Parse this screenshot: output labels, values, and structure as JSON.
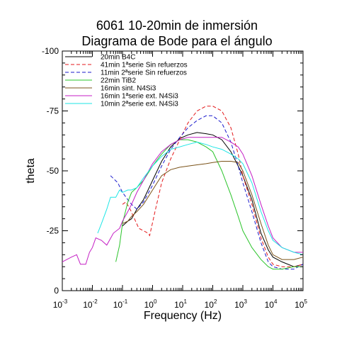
{
  "chart_data": {
    "type": "line",
    "title": [
      "6061 10-20min de inmersión",
      "Diagrama de Bode para el ángulo"
    ],
    "xlabel": "Frequency (Hz)",
    "ylabel": "theta",
    "x_scale": "log",
    "xlim": [
      0.001,
      100000
    ],
    "ylim": [
      0,
      -100
    ],
    "y_inverted": true,
    "yticks": [
      "0",
      "-25",
      "-50",
      "-75",
      "-100"
    ],
    "xticks": [
      {
        "base": "10",
        "exp": "-3"
      },
      {
        "base": "10",
        "exp": "-2"
      },
      {
        "base": "10",
        "exp": "-1"
      },
      {
        "base": "10",
        "exp": "0"
      },
      {
        "base": "10",
        "exp": "1"
      },
      {
        "base": "10",
        "exp": "2"
      },
      {
        "base": "10",
        "exp": "3"
      },
      {
        "base": "10",
        "exp": "4"
      },
      {
        "base": "10",
        "exp": "5"
      }
    ],
    "grid": false,
    "legend_position": "top-left",
    "series": [
      {
        "name": "20min B4C",
        "color": "#000000",
        "dash": "solid",
        "points": [
          [
            0.1,
            -27
          ],
          [
            0.15,
            -29
          ],
          [
            0.2,
            -30
          ],
          [
            0.3,
            -34
          ],
          [
            0.5,
            -38
          ],
          [
            1,
            -46
          ],
          [
            2,
            -54
          ],
          [
            4,
            -60
          ],
          [
            8,
            -63.5
          ],
          [
            15,
            -65
          ],
          [
            30,
            -66
          ],
          [
            60,
            -65.5
          ],
          [
            100,
            -65
          ],
          [
            200,
            -63
          ],
          [
            400,
            -58
          ],
          [
            700,
            -52
          ],
          [
            1000,
            -48
          ],
          [
            2000,
            -38
          ],
          [
            4000,
            -24
          ],
          [
            7000,
            -17
          ],
          [
            10000,
            -14
          ],
          [
            20000,
            -12
          ],
          [
            50000,
            -10
          ],
          [
            100000,
            -11
          ]
        ]
      },
      {
        "name": "41min 1ªserie Sin refuerzos",
        "color": "#e41a1c",
        "dash": "dashed",
        "points": [
          [
            0.1,
            -36
          ],
          [
            0.13,
            -37
          ],
          [
            0.18,
            -34
          ],
          [
            0.25,
            -30
          ],
          [
            0.35,
            -26
          ],
          [
            0.5,
            -25
          ],
          [
            0.7,
            -24
          ],
          [
            0.8,
            -23
          ],
          [
            1.2,
            -33
          ],
          [
            2,
            -45
          ],
          [
            4,
            -55
          ],
          [
            8,
            -63
          ],
          [
            15,
            -70
          ],
          [
            30,
            -75
          ],
          [
            60,
            -77
          ],
          [
            100,
            -77
          ],
          [
            200,
            -75
          ],
          [
            400,
            -68
          ],
          [
            700,
            -57
          ],
          [
            1000,
            -48
          ],
          [
            2000,
            -36
          ],
          [
            4000,
            -22
          ],
          [
            7000,
            -14
          ],
          [
            10000,
            -11
          ],
          [
            20000,
            -10
          ],
          [
            50000,
            -10
          ],
          [
            100000,
            -11
          ]
        ]
      },
      {
        "name": "11min 2ªserie Sin refuerzos",
        "color": "#1a1acd",
        "dash": "dashed",
        "points": [
          [
            0.04,
            -48
          ],
          [
            0.07,
            -45
          ],
          [
            0.1,
            -41
          ],
          [
            0.15,
            -38
          ],
          [
            0.2,
            -36
          ],
          [
            0.3,
            -34
          ],
          [
            0.5,
            -37
          ],
          [
            1,
            -44
          ],
          [
            2,
            -52
          ],
          [
            4,
            -59
          ],
          [
            8,
            -64
          ],
          [
            15,
            -68
          ],
          [
            30,
            -71
          ],
          [
            60,
            -73
          ],
          [
            100,
            -73
          ],
          [
            200,
            -70
          ],
          [
            400,
            -62
          ],
          [
            700,
            -52
          ],
          [
            1000,
            -45
          ],
          [
            2000,
            -33
          ],
          [
            4000,
            -20
          ],
          [
            7000,
            -12
          ],
          [
            10000,
            -10
          ],
          [
            20000,
            -9
          ],
          [
            50000,
            -9
          ],
          [
            100000,
            -11
          ]
        ]
      },
      {
        "name": "22min TiB2",
        "color": "#2bc42b",
        "dash": "solid",
        "points": [
          [
            0.06,
            -12
          ],
          [
            0.08,
            -19
          ],
          [
            0.1,
            -28
          ],
          [
            0.15,
            -37
          ],
          [
            0.2,
            -41
          ],
          [
            0.3,
            -43
          ],
          [
            0.5,
            -46
          ],
          [
            1,
            -52
          ],
          [
            2,
            -57
          ],
          [
            4,
            -61
          ],
          [
            8,
            -63
          ],
          [
            15,
            -63
          ],
          [
            30,
            -62
          ],
          [
            60,
            -60
          ],
          [
            100,
            -58
          ],
          [
            200,
            -50
          ],
          [
            400,
            -40
          ],
          [
            700,
            -31
          ],
          [
            1000,
            -25
          ],
          [
            2000,
            -18
          ],
          [
            4000,
            -13
          ],
          [
            7000,
            -10
          ],
          [
            10000,
            -9
          ],
          [
            20000,
            -9
          ],
          [
            50000,
            -10
          ],
          [
            100000,
            -10
          ]
        ]
      },
      {
        "name": "16min sint. N4Si3",
        "color": "#7a5218",
        "dash": "solid",
        "points": [
          [
            0.1,
            -28
          ],
          [
            0.15,
            -29
          ],
          [
            0.2,
            -31
          ],
          [
            0.3,
            -33
          ],
          [
            0.5,
            -36
          ],
          [
            1,
            -42
          ],
          [
            2,
            -48
          ],
          [
            4,
            -50.5
          ],
          [
            8,
            -51.5
          ],
          [
            15,
            -52
          ],
          [
            30,
            -52.5
          ],
          [
            60,
            -53
          ],
          [
            100,
            -53.5
          ],
          [
            200,
            -54
          ],
          [
            400,
            -54
          ],
          [
            700,
            -53.5
          ],
          [
            1000,
            -50
          ],
          [
            2000,
            -40
          ],
          [
            4000,
            -28
          ],
          [
            7000,
            -19
          ],
          [
            10000,
            -15
          ],
          [
            20000,
            -13
          ],
          [
            50000,
            -13
          ],
          [
            100000,
            -14
          ]
        ]
      },
      {
        "name": "16min 1ªserie ext. N4Si3",
        "color": "#c41ec4",
        "dash": "solid",
        "points": [
          [
            0.001,
            -12
          ],
          [
            0.002,
            -14
          ],
          [
            0.003,
            -15
          ],
          [
            0.004,
            -11
          ],
          [
            0.006,
            -11
          ],
          [
            0.008,
            -16
          ],
          [
            0.01,
            -18
          ],
          [
            0.013,
            -22
          ],
          [
            0.02,
            -21
          ],
          [
            0.03,
            -19
          ],
          [
            0.05,
            -24
          ],
          [
            0.08,
            -26
          ],
          [
            0.1,
            -29
          ],
          [
            0.15,
            -33
          ],
          [
            0.2,
            -36
          ],
          [
            0.3,
            -41
          ],
          [
            0.5,
            -46
          ],
          [
            1,
            -53
          ],
          [
            2,
            -58
          ],
          [
            4,
            -61
          ],
          [
            8,
            -63
          ],
          [
            15,
            -64
          ],
          [
            30,
            -64
          ],
          [
            60,
            -64
          ],
          [
            100,
            -64
          ],
          [
            200,
            -64
          ],
          [
            400,
            -62
          ],
          [
            700,
            -60
          ],
          [
            1000,
            -57
          ],
          [
            2000,
            -48
          ],
          [
            4000,
            -36
          ],
          [
            7000,
            -27
          ],
          [
            10000,
            -22
          ],
          [
            20000,
            -18
          ],
          [
            50000,
            -16
          ],
          [
            100000,
            -16
          ]
        ]
      },
      {
        "name": "10min 2ªserie ext. N4Si3",
        "color": "#1ee6e6",
        "dash": "solid",
        "points": [
          [
            0.015,
            -24
          ],
          [
            0.02,
            -28
          ],
          [
            0.03,
            -34
          ],
          [
            0.04,
            -39
          ],
          [
            0.06,
            -39
          ],
          [
            0.08,
            -42
          ],
          [
            0.1,
            -41
          ],
          [
            0.15,
            -42
          ],
          [
            0.2,
            -42
          ],
          [
            0.3,
            -43
          ],
          [
            0.5,
            -47
          ],
          [
            1,
            -52
          ],
          [
            2,
            -56
          ],
          [
            4,
            -59
          ],
          [
            8,
            -60
          ],
          [
            15,
            -61
          ],
          [
            30,
            -62
          ],
          [
            60,
            -61
          ],
          [
            100,
            -60
          ],
          [
            200,
            -59
          ],
          [
            400,
            -57
          ],
          [
            700,
            -55
          ],
          [
            1000,
            -53
          ],
          [
            2000,
            -45
          ],
          [
            4000,
            -33
          ],
          [
            7000,
            -25
          ],
          [
            10000,
            -21
          ],
          [
            20000,
            -18
          ],
          [
            50000,
            -16
          ],
          [
            100000,
            -15
          ]
        ]
      }
    ]
  }
}
